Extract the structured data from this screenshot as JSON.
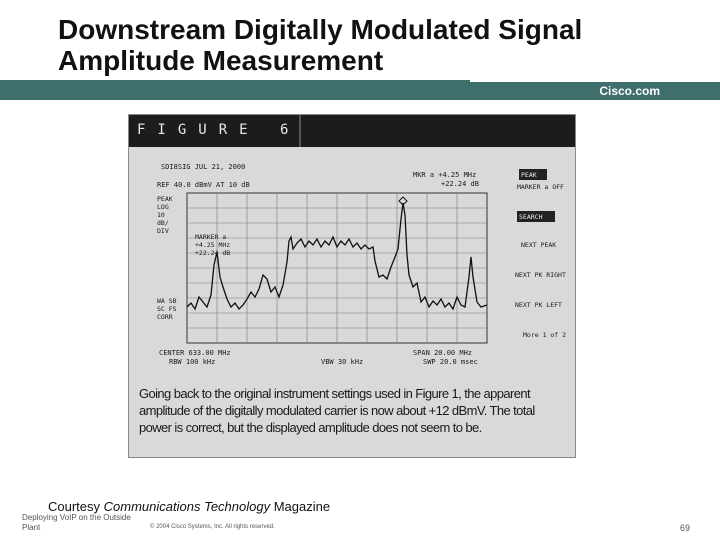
{
  "slide": {
    "title_line1": "Downstream Digitally Modulated Signal",
    "title_line2": "Amplitude Measurement",
    "brand": "Cisco.com",
    "band_color": "#3f6f6c"
  },
  "figure": {
    "label": "FIGURE 6",
    "analyzer": {
      "header_line1": "SDI8SIG JUL 21, 2000",
      "ref_line": "REF 40.0 dBmV     AT 10 dB",
      "marker_readout_1": "MKR a +4.25 MHz",
      "marker_readout_2": "+22.24 dB",
      "left_labels": [
        "PEAK",
        "LOG",
        "10",
        "dB/",
        "DIV"
      ],
      "left_labels_lower": [
        "WA SB",
        "SC FS",
        "CORR"
      ],
      "marker_box_1": "MARKER a",
      "marker_box_2": "+4.25 MHz",
      "marker_box_3": "+22.24 dB",
      "center": "CENTER 633.00 MHz",
      "span": "SPAN 20.00 MHz",
      "rbw": "RBW 100 kHz",
      "vbw": "VBW 30 kHz",
      "swp": "SWP 20.0 msec",
      "softkeys": [
        "MARKER a OFF",
        "NEXT PEAK",
        "NEXT PK RIGHT",
        "NEXT PK LEFT",
        "More 1 of 2"
      ],
      "softkey_highlight_1": "PEAK",
      "softkey_highlight_2": "SEARCH"
    },
    "caption": "Going back to the original instrument settings used in Figure 1, the apparent amplitude of the digitally modulated carrier is now about +12 dBmV. The total power is correct, but the displayed amplitude does not seem to be."
  },
  "footer": {
    "courtesy_prefix": "Courtesy ",
    "courtesy_italic": "Communications Technology",
    "courtesy_suffix": " Magazine",
    "left_text": "Deploying VoIP on the Outside Plant",
    "copyright": "© 2004 Cisco Systems, Inc. All rights reserved.",
    "page_number": "69"
  }
}
